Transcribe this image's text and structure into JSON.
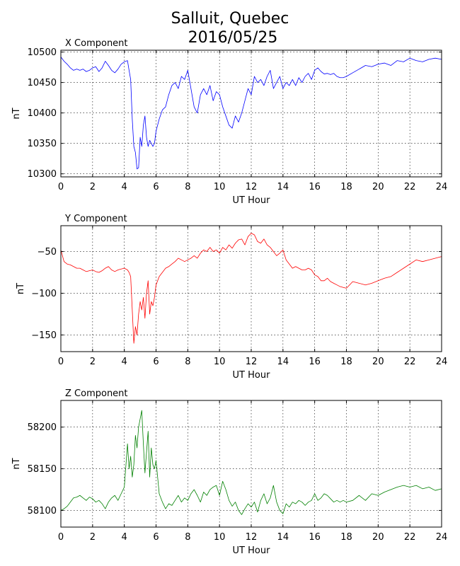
{
  "figure": {
    "title_line1": "Salluit, Quebec",
    "title_line2": "2016/05/25"
  },
  "chart_data": [
    {
      "type": "line",
      "title": "X Component",
      "xlabel": "UT Hour",
      "ylabel": "nT",
      "xlim": [
        0,
        24
      ],
      "ylim": [
        10295,
        10503
      ],
      "xticks": [
        0,
        2,
        4,
        6,
        8,
        10,
        12,
        14,
        16,
        18,
        20,
        22,
        24
      ],
      "yticks": [
        10300,
        10350,
        10400,
        10450,
        10500
      ],
      "grid": true,
      "color": "#0000ff",
      "series": [
        {
          "x": [
            0,
            0.2,
            0.4,
            0.6,
            0.8,
            1.0,
            1.2,
            1.4,
            1.6,
            1.8,
            2.0,
            2.2,
            2.4,
            2.6,
            2.8,
            3.0,
            3.2,
            3.4,
            3.6,
            3.8,
            4.0,
            4.2,
            4.3,
            4.4,
            4.5,
            4.6,
            4.7,
            4.8,
            4.9,
            5.0,
            5.1,
            5.2,
            5.3,
            5.4,
            5.5,
            5.6,
            5.7,
            5.8,
            5.9,
            6.0,
            6.2,
            6.4,
            6.6,
            6.8,
            7.0,
            7.2,
            7.4,
            7.6,
            7.8,
            8.0,
            8.2,
            8.4,
            8.6,
            8.8,
            9.0,
            9.2,
            9.4,
            9.6,
            9.8,
            10.0,
            10.2,
            10.4,
            10.6,
            10.8,
            11.0,
            11.2,
            11.4,
            11.6,
            11.8,
            12.0,
            12.2,
            12.4,
            12.6,
            12.8,
            13.0,
            13.2,
            13.4,
            13.6,
            13.8,
            14.0,
            14.2,
            14.4,
            14.6,
            14.8,
            15.0,
            15.2,
            15.4,
            15.6,
            15.8,
            16.0,
            16.2,
            16.4,
            16.6,
            16.8,
            17.0,
            17.2,
            17.4,
            17.6,
            17.8,
            18.0,
            18.4,
            18.8,
            19.2,
            19.6,
            20.0,
            20.4,
            20.8,
            21.2,
            21.6,
            22.0,
            22.4,
            22.8,
            23.2,
            23.6,
            24.0
          ],
          "y": [
            10492,
            10485,
            10480,
            10474,
            10470,
            10472,
            10470,
            10472,
            10468,
            10470,
            10474,
            10476,
            10468,
            10474,
            10485,
            10478,
            10470,
            10466,
            10472,
            10480,
            10484,
            10486,
            10470,
            10455,
            10390,
            10345,
            10335,
            10308,
            10310,
            10360,
            10345,
            10380,
            10395,
            10360,
            10345,
            10355,
            10350,
            10345,
            10350,
            10370,
            10390,
            10405,
            10410,
            10430,
            10445,
            10450,
            10440,
            10460,
            10455,
            10470,
            10440,
            10410,
            10400,
            10430,
            10440,
            10430,
            10445,
            10420,
            10435,
            10430,
            10410,
            10395,
            10380,
            10375,
            10395,
            10385,
            10400,
            10420,
            10440,
            10430,
            10460,
            10450,
            10455,
            10445,
            10460,
            10470,
            10440,
            10450,
            10460,
            10440,
            10450,
            10445,
            10455,
            10445,
            10458,
            10450,
            10460,
            10465,
            10455,
            10470,
            10474,
            10468,
            10464,
            10465,
            10463,
            10465,
            10460,
            10458,
            10458,
            10460,
            10466,
            10472,
            10478,
            10476,
            10480,
            10482,
            10478,
            10486,
            10484,
            10490,
            10486,
            10484,
            10488,
            10490,
            10488
          ]
        }
      ]
    },
    {
      "type": "line",
      "title": "Y Component",
      "xlabel": "UT Hour",
      "ylabel": "nT",
      "xlim": [
        0,
        24
      ],
      "ylim": [
        -170,
        -19
      ],
      "xticks": [
        0,
        2,
        4,
        6,
        8,
        10,
        12,
        14,
        16,
        18,
        20,
        22,
        24
      ],
      "yticks": [
        -150,
        -100,
        -50
      ],
      "grid": true,
      "color": "#ff0000",
      "series": [
        {
          "x": [
            0,
            0.2,
            0.4,
            0.6,
            0.8,
            1.0,
            1.2,
            1.4,
            1.6,
            1.8,
            2.0,
            2.2,
            2.4,
            2.6,
            2.8,
            3.0,
            3.2,
            3.4,
            3.6,
            3.8,
            4.0,
            4.2,
            4.3,
            4.4,
            4.5,
            4.6,
            4.7,
            4.8,
            4.9,
            5.0,
            5.1,
            5.2,
            5.3,
            5.4,
            5.5,
            5.6,
            5.7,
            5.8,
            5.9,
            6.0,
            6.2,
            6.4,
            6.6,
            6.8,
            7.0,
            7.2,
            7.4,
            7.6,
            7.8,
            8.0,
            8.2,
            8.4,
            8.6,
            8.8,
            9.0,
            9.2,
            9.4,
            9.6,
            9.8,
            10.0,
            10.2,
            10.4,
            10.6,
            10.8,
            11.0,
            11.2,
            11.4,
            11.6,
            11.8,
            12.0,
            12.2,
            12.4,
            12.6,
            12.8,
            13.0,
            13.2,
            13.4,
            13.6,
            13.8,
            14.0,
            14.2,
            14.4,
            14.6,
            14.8,
            15.0,
            15.2,
            15.4,
            15.6,
            15.8,
            16.0,
            16.2,
            16.4,
            16.6,
            16.8,
            17.0,
            17.2,
            17.4,
            17.6,
            17.8,
            18.0,
            18.4,
            18.8,
            19.2,
            19.6,
            20.0,
            20.4,
            20.8,
            21.2,
            21.6,
            22.0,
            22.4,
            22.8,
            23.2,
            23.6,
            24.0
          ],
          "y": [
            -48,
            -62,
            -65,
            -66,
            -68,
            -70,
            -70,
            -72,
            -74,
            -73,
            -72,
            -74,
            -75,
            -73,
            -70,
            -68,
            -72,
            -74,
            -72,
            -71,
            -70,
            -72,
            -75,
            -80,
            -120,
            -160,
            -140,
            -150,
            -125,
            -110,
            -120,
            -105,
            -130,
            -100,
            -85,
            -125,
            -110,
            -115,
            -105,
            -90,
            -80,
            -75,
            -70,
            -68,
            -65,
            -62,
            -58,
            -60,
            -62,
            -60,
            -58,
            -55,
            -58,
            -52,
            -48,
            -50,
            -45,
            -50,
            -48,
            -52,
            -45,
            -48,
            -42,
            -46,
            -40,
            -36,
            -35,
            -42,
            -32,
            -28,
            -30,
            -38,
            -40,
            -35,
            -42,
            -45,
            -50,
            -55,
            -52,
            -48,
            -60,
            -65,
            -70,
            -68,
            -70,
            -72,
            -72,
            -70,
            -72,
            -78,
            -80,
            -85,
            -85,
            -82,
            -86,
            -88,
            -90,
            -92,
            -93,
            -94,
            -86,
            -88,
            -90,
            -88,
            -85,
            -82,
            -80,
            -75,
            -70,
            -65,
            -60,
            -62,
            -60,
            -58,
            -56
          ]
        }
      ]
    },
    {
      "type": "line",
      "title": "Z Component",
      "xlabel": "UT Hour",
      "ylabel": "nT",
      "xlim": [
        0,
        24
      ],
      "ylim": [
        58080,
        58232
      ],
      "xticks": [
        0,
        2,
        4,
        6,
        8,
        10,
        12,
        14,
        16,
        18,
        20,
        22,
        24
      ],
      "yticks": [
        58100,
        58150,
        58200
      ],
      "grid": true,
      "color": "#008000",
      "series": [
        {
          "x": [
            0,
            0.2,
            0.4,
            0.6,
            0.8,
            1.0,
            1.2,
            1.4,
            1.6,
            1.8,
            2.0,
            2.2,
            2.4,
            2.6,
            2.8,
            3.0,
            3.2,
            3.4,
            3.6,
            3.8,
            4.0,
            4.2,
            4.3,
            4.4,
            4.5,
            4.6,
            4.7,
            4.8,
            4.9,
            5.0,
            5.1,
            5.2,
            5.3,
            5.4,
            5.5,
            5.6,
            5.7,
            5.8,
            5.9,
            6.0,
            6.2,
            6.4,
            6.6,
            6.8,
            7.0,
            7.2,
            7.4,
            7.6,
            7.8,
            8.0,
            8.2,
            8.4,
            8.6,
            8.8,
            9.0,
            9.2,
            9.4,
            9.6,
            9.8,
            10.0,
            10.2,
            10.4,
            10.6,
            10.8,
            11.0,
            11.2,
            11.4,
            11.6,
            11.8,
            12.0,
            12.2,
            12.4,
            12.6,
            12.8,
            13.0,
            13.2,
            13.4,
            13.6,
            13.8,
            14.0,
            14.2,
            14.4,
            14.6,
            14.8,
            15.0,
            15.2,
            15.4,
            15.6,
            15.8,
            16.0,
            16.2,
            16.4,
            16.6,
            16.8,
            17.0,
            17.2,
            17.4,
            17.6,
            17.8,
            18.0,
            18.4,
            18.8,
            19.2,
            19.6,
            20.0,
            20.4,
            20.8,
            21.2,
            21.6,
            22.0,
            22.4,
            22.8,
            23.2,
            23.6,
            24.0
          ],
          "y": [
            58100,
            58102,
            58105,
            58110,
            58115,
            58116,
            58118,
            58115,
            58112,
            58116,
            58114,
            58110,
            58112,
            58108,
            58102,
            58110,
            58115,
            58118,
            58112,
            58120,
            58128,
            58180,
            58150,
            58165,
            58140,
            58155,
            58190,
            58175,
            58200,
            58210,
            58220,
            58180,
            58145,
            58170,
            58195,
            58140,
            58175,
            58155,
            58150,
            58160,
            58120,
            58110,
            58102,
            58108,
            58106,
            58112,
            58118,
            58110,
            58115,
            58112,
            58120,
            58125,
            58118,
            58110,
            58122,
            58118,
            58125,
            58128,
            58130,
            58118,
            58135,
            58125,
            58112,
            58105,
            58110,
            58100,
            58095,
            58102,
            58108,
            58104,
            58110,
            58098,
            58112,
            58120,
            58108,
            58115,
            58130,
            58110,
            58100,
            58096,
            58108,
            58104,
            58110,
            58108,
            58112,
            58110,
            58106,
            58110,
            58112,
            58120,
            58112,
            58115,
            58120,
            58118,
            58114,
            58110,
            58112,
            58110,
            58112,
            58110,
            58112,
            58118,
            58112,
            58120,
            58118,
            58122,
            58125,
            58128,
            58130,
            58128,
            58130,
            58126,
            58128,
            58124,
            58126
          ]
        }
      ]
    }
  ]
}
